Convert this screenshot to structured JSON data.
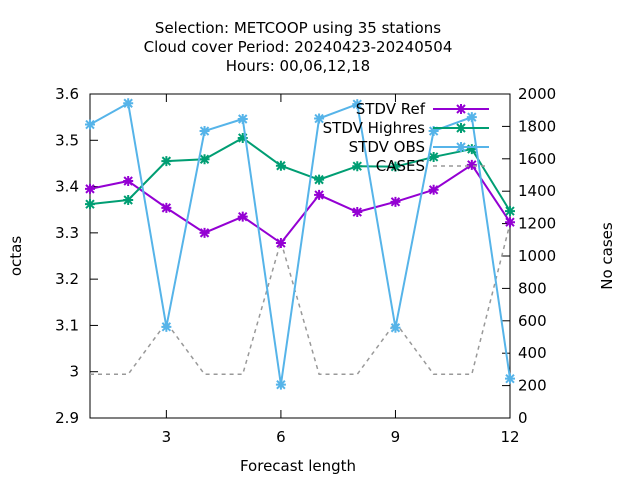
{
  "chart_data": {
    "type": "line",
    "title_lines": [
      "Selection: METCOOP using    35 stations",
      "Cloud cover   Period: 20240423-20240504",
      "Hours:  00,06,12,18"
    ],
    "xlabel": "Forecast length",
    "ylabel": "octas",
    "y2label": "No cases",
    "xlim": [
      1,
      12
    ],
    "ylim": [
      2.9,
      3.6
    ],
    "y2lim": [
      0,
      2000
    ],
    "xticks": [
      3,
      6,
      9,
      12
    ],
    "yticks": [
      2.9,
      3,
      3.1,
      3.2,
      3.3,
      3.4,
      3.5,
      3.6
    ],
    "y2ticks": [
      0,
      200,
      400,
      600,
      800,
      1000,
      1200,
      1400,
      1600,
      1800,
      2000
    ],
    "grid": false,
    "legend_position": "top-right",
    "x": [
      1,
      2,
      3,
      4,
      5,
      6,
      7,
      8,
      9,
      10,
      11,
      12
    ],
    "series": [
      {
        "name": "STDV Ref",
        "color": "#9400d3",
        "axis": "left",
        "style": "solid-marker",
        "values": [
          3.395,
          3.412,
          3.354,
          3.3,
          3.335,
          3.278,
          3.382,
          3.345,
          3.367,
          3.393,
          3.447,
          3.323
        ]
      },
      {
        "name": "STDV Highres",
        "color": "#009e73",
        "axis": "left",
        "style": "solid-marker",
        "values": [
          3.362,
          3.371,
          3.455,
          3.459,
          3.505,
          3.445,
          3.415,
          3.444,
          3.443,
          3.464,
          3.481,
          3.347
        ]
      },
      {
        "name": "STDV OBS",
        "color": "#56b4e9",
        "axis": "left",
        "style": "solid-marker",
        "values": [
          3.534,
          3.58,
          3.097,
          3.52,
          3.546,
          2.972,
          3.547,
          3.578,
          3.095,
          3.52,
          3.55,
          2.985
        ]
      },
      {
        "name": "CASES",
        "color": "#999999",
        "axis": "right",
        "style": "dashed",
        "values": [
          270,
          270,
          590,
          270,
          270,
          1090,
          270,
          270,
          590,
          270,
          270,
          1200
        ]
      }
    ]
  }
}
